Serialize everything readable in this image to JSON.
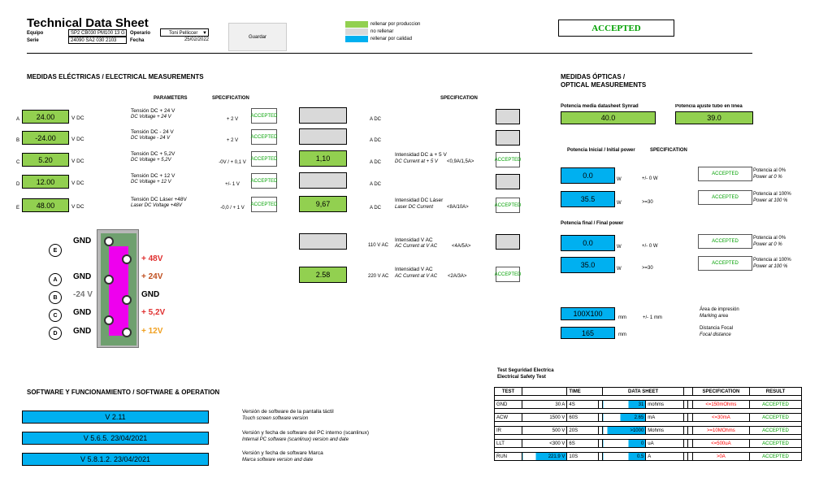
{
  "header": {
    "title": "Technical Data Sheet",
    "equipo_label": "Equipo",
    "equipo_value": "SP2 CB030 PM100 13 G",
    "serie_label": "Serie",
    "serie_value": "24090 SA2 030 2103",
    "operario_label": "Operario",
    "operario_value": "Toni Pelliccer",
    "fecha_label": "Fecha",
    "fecha_value": "25/02/2022",
    "guardar_label": "Guardar",
    "legend": [
      {
        "text": "rellenar por produccion",
        "color": "#92d050"
      },
      {
        "text": "no rellenar",
        "color": "#d9d9d9"
      },
      {
        "text": "rellenar por calidad",
        "color": "#00b0f0"
      }
    ],
    "status": "ACCEPTED"
  },
  "electrical": {
    "title": "MEDIDAS ELÉCTRICAS / ELECTRICAL MEASUREMENTS",
    "parameters_header": "PARAMETERS",
    "spec_header": "SPECIFICATION",
    "spec_header2": "SPECIFICATION",
    "rows": [
      {
        "letter": "A",
        "value": "24.00",
        "unit": "V DC",
        "name": "Tensión DC + 24 V",
        "name_en": "DC Voltage + 24 V",
        "spec": "+ 2 V",
        "result": "ACCEPTED",
        "current": "",
        "current_unit": "A DC",
        "current_name": "",
        "current_name_en": "",
        "current_spec": "",
        "current_result": ""
      },
      {
        "letter": "B",
        "value": "-24.00",
        "unit": "V DC",
        "name": "Tensión DC - 24 V",
        "name_en": "DC Voltage - 24 V",
        "spec": "+ 2 V",
        "result": "ACCEPTED",
        "current": "",
        "current_unit": "A DC",
        "current_name": "",
        "current_name_en": "",
        "current_spec": "",
        "current_result": ""
      },
      {
        "letter": "C",
        "value": "5.20",
        "unit": "V DC",
        "name": "Tensión DC + 5,2V",
        "name_en": "DC Voltage + 5,2V",
        "spec": "-0V / + 0,1 V",
        "result": "ACCEPTED",
        "current": "1,10",
        "current_unit": "A DC",
        "current_name": "Intensidad DC a + 5 V",
        "current_name_en": "DC Current at + 5 V",
        "current_spec": "<0,9A/1,5A>",
        "current_result": "ACCEPTED"
      },
      {
        "letter": "D",
        "value": "12.00",
        "unit": "V DC",
        "name": "Tensión DC + 12 V",
        "name_en": "DC Voltage + 12 V",
        "spec": "+/- 1 V",
        "result": "ACCEPTED",
        "current": "",
        "current_unit": "A DC",
        "current_name": "",
        "current_name_en": "",
        "current_spec": "",
        "current_result": ""
      },
      {
        "letter": "E",
        "value": "48.00",
        "unit": "V DC",
        "name": "Tensión DC Láser +48V",
        "name_en": "Laser DC Voltage +48V",
        "spec": "-0,0 / + 1 V",
        "result": "ACCEPTED",
        "current": "9,67",
        "current_unit": "A DC",
        "current_name": "Intensidad DC Láser",
        "current_name_en": "Laser DC Current",
        "current_spec": "<8A/10A>",
        "current_result": "ACCEPTED"
      }
    ],
    "ac_rows": [
      {
        "value": "",
        "unit": "110 V AC",
        "name": "Intensidad V AC",
        "name_en": "AC Current at V AC",
        "spec": "<4A/5A>",
        "result": ""
      },
      {
        "value": "2.58",
        "unit": "220 V AC",
        "name": "Intensidad V AC",
        "name_en": "AC Current at V AC",
        "spec": "<2A/3A>",
        "result": "ACCEPTED"
      }
    ]
  },
  "board": {
    "labels": [
      {
        "letter": "E",
        "left": "GND",
        "right": ""
      },
      {
        "letter": "",
        "left": "",
        "right": "+ 48V"
      },
      {
        "letter": "A",
        "left": "GND",
        "right": "+ 24V"
      },
      {
        "letter": "B",
        "left": "-24 V",
        "right": "GND"
      },
      {
        "letter": "C",
        "left": "GND",
        "right": "+ 5,2V"
      },
      {
        "letter": "D",
        "left": "GND",
        "right": "+ 12V"
      }
    ]
  },
  "optical": {
    "title1": "MEDIDAS ÓPTICAS /",
    "title2": "OPTICAL MEASUREMENTS",
    "pot_media_label": "Potencia media datasheet Synrad",
    "pot_media_value": "40.0",
    "pot_ajuste_label": "Potencia ajuste  tubo en linea",
    "pot_ajuste_value": "39.0",
    "initial_label": "Potencia Inicial / Initial power",
    "spec_label": "SPECIFICATION",
    "final_label": "Potencia final / Final power",
    "initial": [
      {
        "value": "0.0",
        "unit": "W",
        "spec": "+/- 0 W",
        "result": "ACCEPTED",
        "note": "Potencia al 0%",
        "note_en": "Power at 0 %"
      },
      {
        "value": "35.5",
        "unit": "W",
        "spec": ">=30",
        "result": "ACCEPTED",
        "note": "Potencia al 100%",
        "note_en": "Power at 100 %"
      }
    ],
    "final": [
      {
        "value": "0.0",
        "unit": "W",
        "spec": "+/- 0 W",
        "result": "ACCEPTED",
        "note": "Potencia al 0%",
        "note_en": "Power at 0 %"
      },
      {
        "value": "35.0",
        "unit": "W",
        "spec": ">=30",
        "result": "ACCEPTED",
        "note": "Potencia al 100%",
        "note_en": "Power at 100 %"
      }
    ],
    "area_value": "100X100",
    "area_unit": "mm",
    "area_spec": "+/- 1 mm",
    "area_label": "Área de impresión",
    "area_label_en": "Marking area",
    "focal_value": "165",
    "focal_unit": "mm",
    "focal_label": "Distancia Focal",
    "focal_label_en": "Focal distance"
  },
  "software": {
    "title": "SOFTWARE Y FUNCIONAMIENTO / SOFTWARE & OPERATION",
    "items": [
      {
        "value": "V 2.11",
        "desc": "Versión de software de la pantalla táctil",
        "desc_en": "Touch screen software version"
      },
      {
        "value": "V 5.6.5.  23/04/2021",
        "desc": "Versión y fecha de software del PC interno (scanlinux)",
        "desc_en": "Internal PC software (scanlinux) version and date"
      },
      {
        "value": "V 5.8.1.2. 23/04/2021",
        "desc": "Versión y fecha de software Marca",
        "desc_en": "Marca software version and date"
      }
    ]
  },
  "safety": {
    "title": "Test Seguridad Electrica",
    "title_en": "Electrical Safety Test",
    "headers": [
      "TEST",
      "TIME",
      "DATA SHEET",
      "SPECIFICATION",
      "RESULT"
    ],
    "rows": [
      {
        "test": "GND",
        "setting": "30 A",
        "time": "4S",
        "value": "31",
        "unit": "mohms",
        "spec": "<=150mOhms",
        "result": "ACCEPTED",
        "fill": 0.4
      },
      {
        "test": "ACW",
        "setting": "1500 V",
        "time": "60S",
        "value": "2.65",
        "unit": "mA",
        "spec": "<=30mA",
        "result": "ACCEPTED",
        "fill": 0.6
      },
      {
        "test": "IR",
        "setting": "500 V",
        "time": "20S",
        "value": ">1000",
        "unit": "Mohms",
        "spec": ">=10MOhms",
        "result": "ACCEPTED",
        "fill": 0.9
      },
      {
        "test": "LLT",
        "setting": "<300 V",
        "time": "6S",
        "value": "0",
        "unit": "uA",
        "spec": "<=500uA",
        "result": "ACCEPTED",
        "fill": 0.4
      },
      {
        "test": "RUN",
        "setting": "221.9",
        "setting_unit": "V",
        "time": "10S",
        "value": "0.5",
        "unit": "A",
        "spec": ">0A",
        "result": "ACCEPTED",
        "fill": 0.4
      }
    ]
  }
}
